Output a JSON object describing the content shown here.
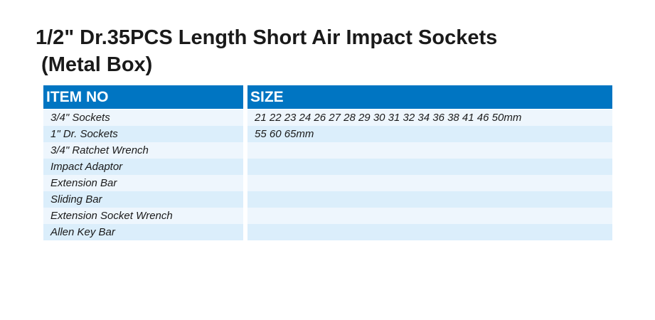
{
  "title": {
    "line1": "1/2\" Dr.35PCS Length Short Air Impact Sockets",
    "line2": " (Metal Box)"
  },
  "table": {
    "headers": {
      "item_no": "ITEM NO",
      "size": "SIZE"
    },
    "rows": [
      {
        "item": "3/4\" Sockets",
        "size": "21 22 23 24 26 27 28 29 30 31 32 34 36 38 41 46 50mm"
      },
      {
        "item": "1\" Dr. Sockets",
        "size": "55 60 65mm"
      },
      {
        "item": "3/4\" Ratchet Wrench",
        "size": ""
      },
      {
        "item": "Impact Adaptor",
        "size": ""
      },
      {
        "item": "Extension Bar",
        "size": ""
      },
      {
        "item": "Sliding Bar",
        "size": ""
      },
      {
        "item": "Extension Socket Wrench",
        "size": ""
      },
      {
        "item": "Allen Key Bar",
        "size": ""
      }
    ]
  },
  "colors": {
    "header_bg": "#0075c2",
    "row_light": "#eef6fd",
    "row_dark": "#dbeefb"
  }
}
